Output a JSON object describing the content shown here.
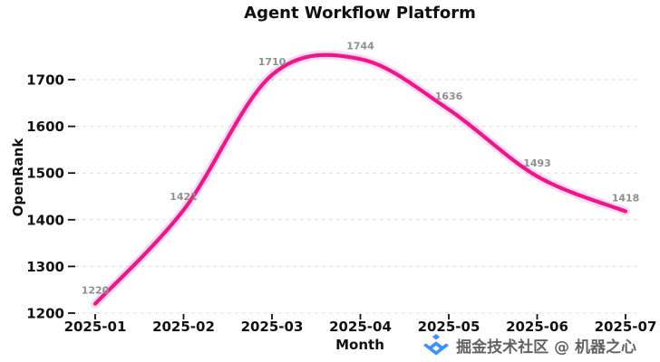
{
  "chart_data": {
    "type": "line",
    "title": "Agent Workflow Platform",
    "xlabel": "Month",
    "ylabel": "OpenRank",
    "categories": [
      "2025-01",
      "2025-02",
      "2025-03",
      "2025-04",
      "2025-05",
      "2025-06",
      "2025-07"
    ],
    "series": [
      {
        "name": "OpenRank",
        "values": [
          1220,
          1421,
          1710,
          1744,
          1636,
          1493,
          1418
        ]
      }
    ],
    "point_labels": [
      "1220",
      "1421",
      "1710",
      "1744",
      "1636",
      "1493",
      "1418"
    ],
    "yticks": [
      1200,
      1300,
      1400,
      1500,
      1600,
      1700
    ],
    "ylim": [
      1200,
      1780
    ],
    "line_color": "#f0158c",
    "grid": "horizontal-dashed",
    "grid_color": "#dcdcdc",
    "label_color": "#8f8f8f",
    "legend": "none",
    "smooth": true
  },
  "watermark": {
    "text": "掘金技术社区 @ 机器之心",
    "icon": "juejin-logo-icon",
    "icon_color": "#1E80FF"
  }
}
